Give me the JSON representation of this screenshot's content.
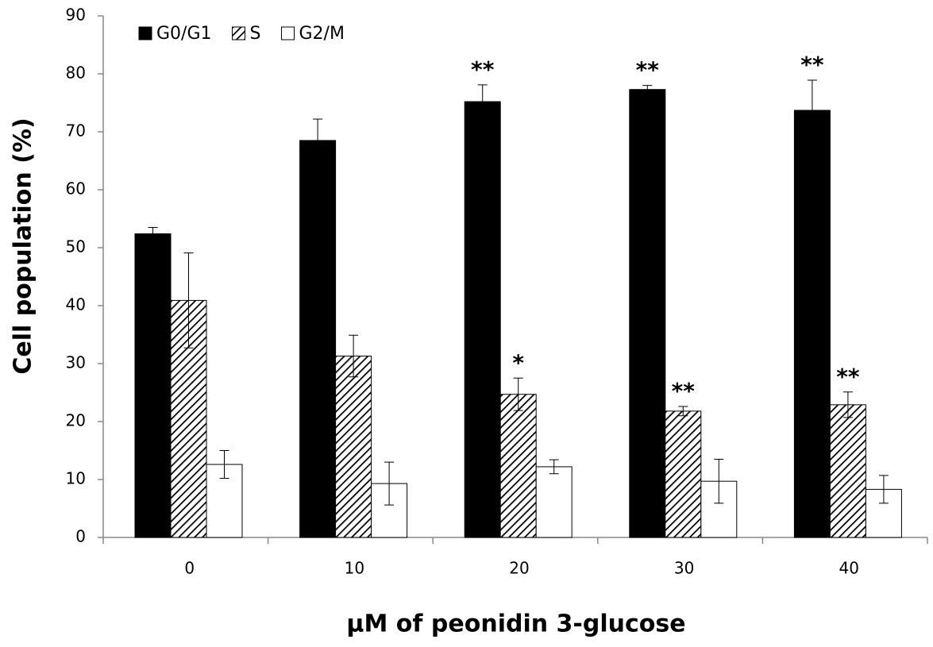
{
  "chart_data": {
    "type": "bar",
    "y_label": "Cell population (%)",
    "x_label": "µM of peonidin 3-glucose",
    "categories": [
      "0",
      "10",
      "20",
      "30",
      "40"
    ],
    "series": [
      {
        "name": "G0/G1",
        "color": "#000000",
        "values": [
          52.4,
          68.5,
          75.2,
          77.3,
          73.7
        ],
        "errors": [
          1.1,
          3.7,
          2.9,
          0.7,
          5.2
        ]
      },
      {
        "name": "S",
        "color": "#000000",
        "hatch": true,
        "values": [
          40.9,
          31.3,
          24.7,
          21.8,
          22.9
        ],
        "errors": [
          8.2,
          3.6,
          2.8,
          0.8,
          2.2
        ]
      },
      {
        "name": "G2/M",
        "color": "#ffffff",
        "values": [
          12.6,
          9.3,
          12.2,
          9.7,
          8.3
        ],
        "errors": [
          2.4,
          3.7,
          1.2,
          3.8,
          2.4
        ]
      }
    ],
    "annotations": [
      {
        "text": "**",
        "category": 2,
        "series": 0
      },
      {
        "text": "**",
        "category": 3,
        "series": 0
      },
      {
        "text": "**",
        "category": 4,
        "series": 0
      },
      {
        "text": "*",
        "category": 2,
        "series": 1
      },
      {
        "text": "**",
        "category": 3,
        "series": 1
      },
      {
        "text": "**",
        "category": 4,
        "series": 1
      }
    ],
    "ylim": [
      0,
      90
    ],
    "yticks": [
      0,
      10,
      20,
      30,
      40,
      50,
      60,
      70,
      80,
      90
    ],
    "grid": false,
    "legend": "top-left"
  }
}
